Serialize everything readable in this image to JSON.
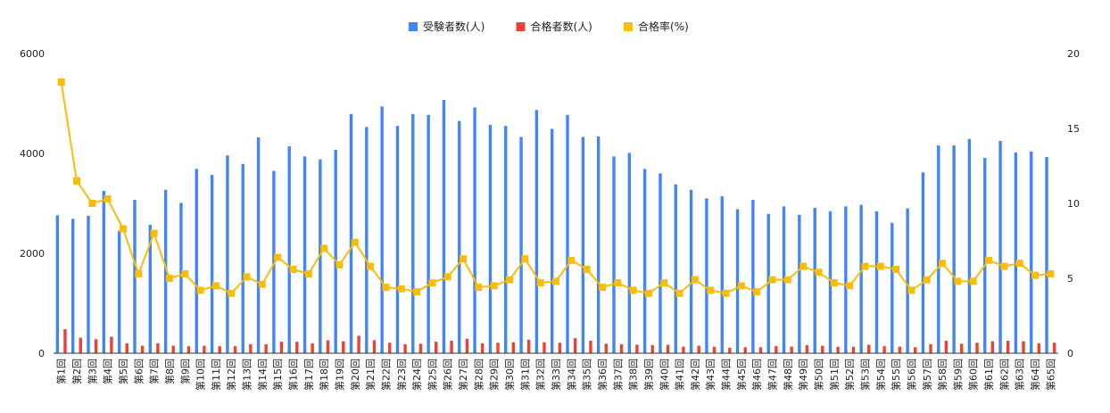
{
  "chart_data": {
    "type": "bar",
    "categories": [
      "第1回",
      "第2回",
      "第3回",
      "第4回",
      "第5回",
      "第6回",
      "第7回",
      "第8回",
      "第9回",
      "第10回",
      "第11回",
      "第12回",
      "第13回",
      "第14回",
      "第15回",
      "第16回",
      "第17回",
      "第18回",
      "第19回",
      "第20回",
      "第21回",
      "第22回",
      "第23回",
      "第24回",
      "第25回",
      "第26回",
      "第27回",
      "第28回",
      "第29回",
      "第30回",
      "第31回",
      "第32回",
      "第33回",
      "第34回",
      "第35回",
      "第36回",
      "第37回",
      "第38回",
      "第39回",
      "第40回",
      "第41回",
      "第42回",
      "第43回",
      "第44回",
      "第45回",
      "第46回",
      "第47回",
      "第48回",
      "第49回",
      "第50回",
      "第51回",
      "第52回",
      "第53回",
      "第54回",
      "第55回",
      "第56回",
      "第57回",
      "第58回",
      "第59回",
      "第60回",
      "第61回",
      "第62回",
      "第63回",
      "第64回",
      "第65回"
    ],
    "series": [
      {
        "name": "受験者数(人)",
        "type": "bar",
        "axis": "left",
        "color": "#4285f4",
        "values": [
          2760,
          2690,
          2750,
          3250,
          2450,
          3070,
          2570,
          3270,
          3010,
          3690,
          3570,
          3960,
          3790,
          4320,
          3650,
          4140,
          3940,
          3880,
          4070,
          4790,
          4530,
          4940,
          4550,
          4790,
          4770,
          5070,
          4650,
          4920,
          4570,
          4550,
          4330,
          4870,
          4490,
          4770,
          4330,
          4340,
          3940,
          4010,
          3690,
          3600,
          3380,
          3270,
          3100,
          3140,
          2880,
          3070,
          2790,
          2940,
          2770,
          2910,
          2840,
          2940,
          2970,
          2840,
          2610,
          2900,
          3620,
          4160,
          4160,
          4290,
          3910,
          4250,
          4020,
          4040,
          3930
        ]
      },
      {
        "name": "合格者数(人)",
        "type": "bar",
        "axis": "left",
        "color": "#ea4335",
        "values": [
          480,
          310,
          280,
          330,
          200,
          150,
          200,
          150,
          140,
          150,
          140,
          140,
          180,
          180,
          230,
          230,
          200,
          260,
          240,
          350,
          260,
          210,
          180,
          190,
          230,
          250,
          290,
          200,
          210,
          220,
          270,
          220,
          210,
          300,
          250,
          190,
          180,
          170,
          160,
          170,
          130,
          150,
          130,
          110,
          120,
          120,
          140,
          130,
          160,
          150,
          130,
          130,
          170,
          140,
          130,
          120,
          180,
          250,
          190,
          210,
          240,
          250,
          240,
          200,
          210
        ]
      },
      {
        "name": "合格率(%)",
        "type": "line",
        "axis": "right",
        "color": "#fbbc04",
        "values": [
          18.1,
          11.5,
          10.0,
          10.3,
          8.3,
          5.3,
          8.0,
          5.0,
          5.3,
          4.2,
          4.5,
          4.0,
          5.1,
          4.6,
          6.4,
          5.6,
          5.3,
          7.0,
          5.9,
          7.4,
          5.8,
          4.4,
          4.3,
          4.1,
          4.7,
          5.1,
          6.3,
          4.4,
          4.5,
          4.9,
          6.3,
          4.7,
          4.8,
          6.2,
          5.6,
          4.4,
          4.7,
          4.2,
          4.0,
          4.7,
          4.0,
          4.9,
          4.2,
          4.0,
          4.5,
          4.1,
          4.9,
          4.9,
          5.8,
          5.4,
          4.7,
          4.5,
          5.8,
          5.8,
          5.6,
          4.2,
          4.9,
          6.0,
          4.8,
          4.8,
          6.2,
          5.8,
          6.0,
          5.2,
          5.3
        ]
      }
    ],
    "y_left": {
      "min": 0,
      "max": 6000,
      "ticks": [
        "0",
        "2000",
        "4000",
        "6000"
      ]
    },
    "y_right": {
      "min": 0,
      "max": 20,
      "ticks": [
        "0",
        "5",
        "10",
        "15",
        "20"
      ]
    },
    "legend_position": "top-center",
    "grid": false
  }
}
